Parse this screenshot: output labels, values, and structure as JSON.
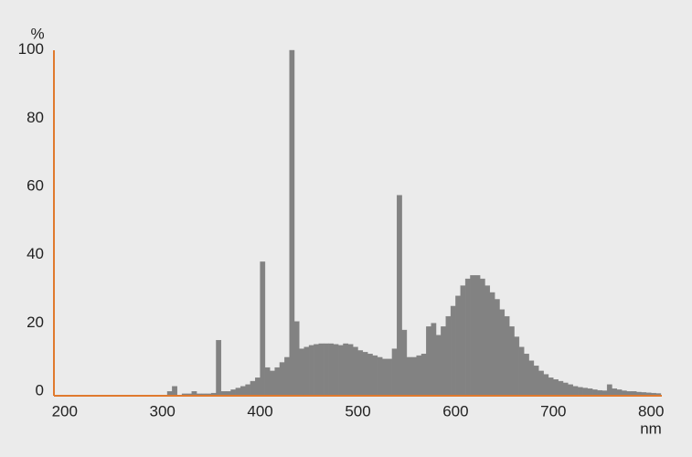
{
  "chart_data": {
    "type": "histogram",
    "y_unit": "%",
    "x_unit": "nm",
    "color": "#828282",
    "axis_color": "#e07a2e",
    "bins": [
      300,
      305,
      310,
      315,
      320,
      325,
      330,
      335,
      340,
      345,
      350,
      355,
      360,
      365,
      370,
      375,
      380,
      385,
      390,
      395,
      400,
      405,
      410,
      415,
      420,
      425,
      430,
      435,
      440,
      445,
      450,
      455,
      460,
      465,
      470,
      475,
      480,
      485,
      490,
      495,
      500,
      505,
      510,
      515,
      520,
      525,
      530,
      535,
      540,
      545,
      550,
      555,
      560,
      565,
      570,
      575,
      580,
      585,
      590,
      595,
      600,
      605,
      610,
      615,
      620,
      625,
      630,
      635,
      640,
      645,
      650,
      655,
      660,
      665,
      670,
      675,
      680,
      685,
      690,
      695,
      700,
      705,
      710,
      715,
      720,
      725,
      730,
      735,
      740,
      745,
      750,
      755,
      760,
      765,
      770,
      775,
      780,
      785,
      790,
      795,
      800,
      805,
      810
    ],
    "values": [
      0,
      1,
      2.5,
      0,
      0.3,
      0.3,
      1,
      0.3,
      0.3,
      0.3,
      0.5,
      16,
      1,
      1,
      1.5,
      2,
      2.5,
      3,
      4,
      5,
      39,
      8,
      7,
      8,
      9.5,
      11,
      101,
      21.5,
      13.5,
      14,
      14.5,
      14.8,
      15,
      15,
      15,
      14.8,
      14.5,
      15,
      14.8,
      14,
      13,
      12.5,
      12,
      11.5,
      11,
      10.5,
      10.5,
      13.5,
      58.5,
      19,
      11,
      11,
      11.5,
      12,
      20,
      21,
      17.5,
      20,
      23,
      26,
      29,
      32,
      34,
      35,
      35,
      34,
      32,
      30,
      28,
      25,
      23,
      20,
      17,
      14,
      12,
      10,
      8.5,
      7,
      6,
      5,
      4.5,
      4,
      3.5,
      3,
      2.5,
      2.2,
      2,
      1.8,
      1.5,
      1.3,
      1.2,
      3,
      1.8,
      1.5,
      1.2,
      1,
      1,
      0.8,
      0.7,
      0.6,
      0.5,
      0.4
    ],
    "xlim": [
      189,
      811
    ],
    "ylim": [
      0,
      101
    ],
    "xticks": [
      200,
      300,
      400,
      500,
      600,
      700,
      800
    ],
    "yticks": [
      0,
      20,
      40,
      60,
      80,
      100
    ]
  }
}
